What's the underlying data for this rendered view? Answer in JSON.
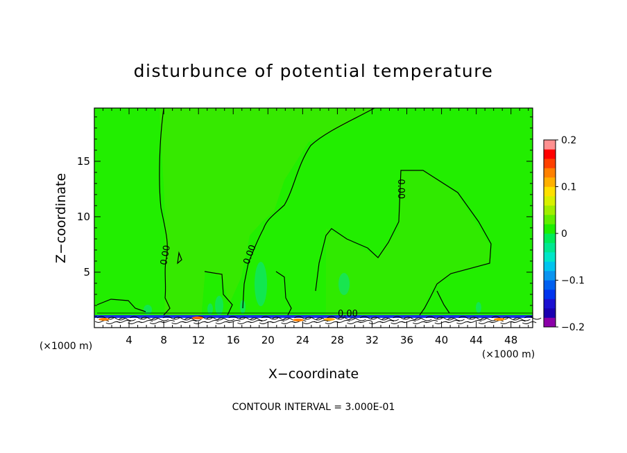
{
  "chart_data": {
    "type": "heatmap",
    "title": "disturbunce of potential temperature",
    "xlabel": "X−coordinate",
    "ylabel": "Z−coordinate",
    "x_unit_left": "(×1000 m)",
    "x_unit_right": "(×1000 m)",
    "xlim": [
      0,
      50.5
    ],
    "ylim": [
      0,
      19.8
    ],
    "xticks": [
      {
        "v": 4,
        "label": "4"
      },
      {
        "v": 8,
        "label": "8"
      },
      {
        "v": 12,
        "label": "12"
      },
      {
        "v": 16,
        "label": "16"
      },
      {
        "v": 20,
        "label": "20"
      },
      {
        "v": 24,
        "label": "24"
      },
      {
        "v": 28,
        "label": "28"
      },
      {
        "v": 32,
        "label": "32"
      },
      {
        "v": 36,
        "label": "36"
      },
      {
        "v": 40,
        "label": "40"
      },
      {
        "v": 44,
        "label": "44"
      },
      {
        "v": 48,
        "label": "48"
      }
    ],
    "yticks": [
      {
        "v": 5,
        "label": "5"
      },
      {
        "v": 10,
        "label": "10"
      },
      {
        "v": 15,
        "label": "15"
      }
    ],
    "contour_labels": [
      {
        "x": 8.5,
        "y": 6.5,
        "text": "0.00",
        "rotate": -80
      },
      {
        "x": 18.2,
        "y": 6.5,
        "text": "0.00",
        "rotate": -70
      },
      {
        "x": 29.2,
        "y": 1.0,
        "text": "0.00",
        "rotate": 0
      },
      {
        "x": 35.0,
        "y": 12.5,
        "text": "0.00",
        "rotate": 90
      }
    ],
    "contour_interval_text": "CONTOUR INTERVAL = 3.000E-01",
    "colorbar": {
      "min": -0.2,
      "max": 0.2,
      "ticks": [
        {
          "v": 0.2,
          "label": "0.2"
        },
        {
          "v": 0.1,
          "label": "0.1"
        },
        {
          "v": 0,
          "label": "0"
        },
        {
          "v": -0.1,
          "label": "−0.1"
        },
        {
          "v": -0.2,
          "label": "−0.2"
        }
      ],
      "colors": [
        "#8b00a8",
        "#1a00b0",
        "#1b10d0",
        "#0034ee",
        "#0060f0",
        "#0a94f0",
        "#00c4ee",
        "#00e6c8",
        "#00e890",
        "#00ec58",
        "#1eee00",
        "#60ee00",
        "#a0ee00",
        "#d8f000",
        "#ffe000",
        "#ffb000",
        "#ff8000",
        "#ff4000",
        "#ff0000",
        "#ff9090"
      ]
    },
    "background_color": "#22ee00"
  }
}
